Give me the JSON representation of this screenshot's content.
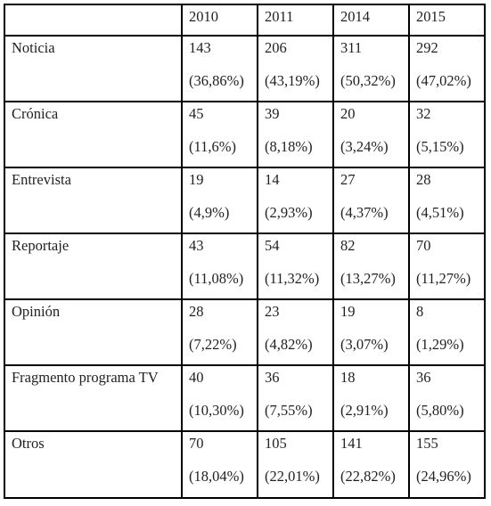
{
  "table": {
    "header": [
      "",
      "2010",
      "2011",
      "2014",
      "2015"
    ],
    "rows": [
      {
        "category": "Noticia",
        "cells": [
          {
            "count": "143",
            "percent": "(36,86%)"
          },
          {
            "count": "206",
            "percent": "(43,19%)"
          },
          {
            "count": "311",
            "percent": "(50,32%)"
          },
          {
            "count": "292",
            "percent": "(47,02%)"
          }
        ]
      },
      {
        "category": "Crónica",
        "cells": [
          {
            "count": "45",
            "percent": "(11,6%)"
          },
          {
            "count": "39",
            "percent": "(8,18%)"
          },
          {
            "count": "20",
            "percent": "(3,24%)"
          },
          {
            "count": "32",
            "percent": "(5,15%)"
          }
        ]
      },
      {
        "category": "Entrevista",
        "cells": [
          {
            "count": "19",
            "percent": "(4,9%)"
          },
          {
            "count": "14",
            "percent": "(2,93%)"
          },
          {
            "count": "27",
            "percent": "(4,37%)"
          },
          {
            "count": "28",
            "percent": "(4,51%)"
          }
        ]
      },
      {
        "category": "Reportaje",
        "cells": [
          {
            "count": "43",
            "percent": "(11,08%)"
          },
          {
            "count": "54",
            "percent": "(11,32%)"
          },
          {
            "count": "82",
            "percent": "(13,27%)"
          },
          {
            "count": "70",
            "percent": "(11,27%)"
          }
        ]
      },
      {
        "category": "Opinión",
        "cells": [
          {
            "count": "28",
            "percent": "(7,22%)"
          },
          {
            "count": "23",
            "percent": "(4,82%)"
          },
          {
            "count": "19",
            "percent": "(3,07%)"
          },
          {
            "count": "8",
            "percent": "(1,29%)"
          }
        ]
      },
      {
        "category": "Fragmento programa TV",
        "cells": [
          {
            "count": "40",
            "percent": "(10,30%)"
          },
          {
            "count": "36",
            "percent": "(7,55%)"
          },
          {
            "count": "18",
            "percent": "(2,91%)"
          },
          {
            "count": "36",
            "percent": "(5,80%)"
          }
        ]
      },
      {
        "category": "Otros",
        "cells": [
          {
            "count": "70",
            "percent": "(18,04%)"
          },
          {
            "count": "105",
            "percent": "(22,01%)"
          },
          {
            "count": "141",
            "percent": "(22,82%)"
          },
          {
            "count": "155",
            "percent": "(24,96%)"
          }
        ]
      }
    ]
  }
}
